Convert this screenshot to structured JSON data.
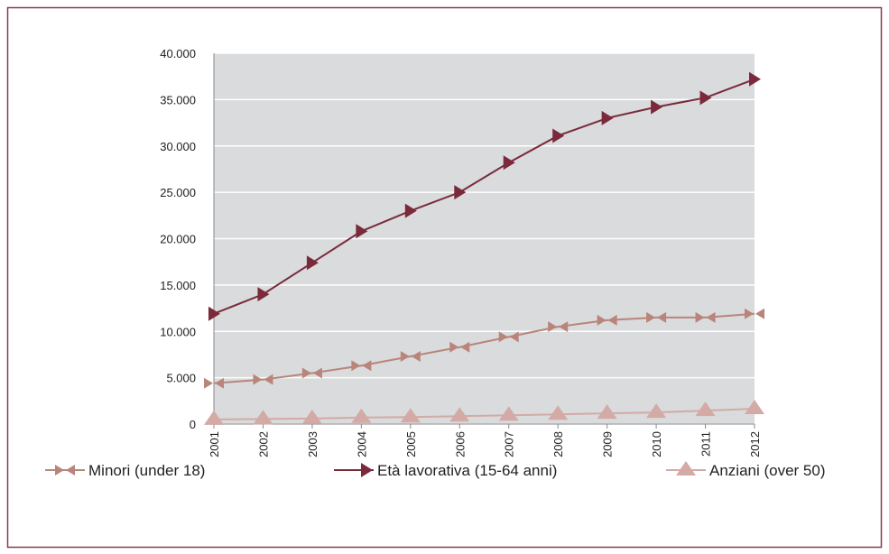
{
  "chart_data": {
    "type": "line",
    "categories": [
      "2001",
      "2002",
      "2003",
      "2004",
      "2005",
      "2006",
      "2007",
      "2008",
      "2009",
      "2010",
      "2011",
      "2012"
    ],
    "series": [
      {
        "name": "Minori (under 18)",
        "color": "#b9857b",
        "marker": "double-arrow",
        "values": [
          4400,
          4800,
          5500,
          6300,
          7300,
          8300,
          9400,
          10500,
          11200,
          11500,
          11500,
          11900
        ]
      },
      {
        "name": "Età lavorativa (15-64 anni)",
        "color": "#7a2a3b",
        "marker": "arrow",
        "values": [
          11900,
          14000,
          17400,
          20800,
          23000,
          25000,
          28200,
          31100,
          33000,
          34200,
          35200,
          37200
        ]
      },
      {
        "name": "Anziani (over 50)",
        "color": "#d3aaa6",
        "marker": "triangle",
        "values": [
          500,
          550,
          600,
          700,
          750,
          850,
          950,
          1050,
          1150,
          1250,
          1450,
          1650
        ]
      }
    ],
    "ylim": [
      0,
      40000
    ],
    "yticks": [
      0,
      {
        "value": 5000,
        "label": "5.000"
      },
      {
        "value": 10000,
        "label": "10.000"
      },
      {
        "value": 15000,
        "label": "15.000"
      },
      {
        "value": 20000,
        "label": "20.000"
      },
      {
        "value": 25000,
        "label": "25.000"
      },
      {
        "value": 30000,
        "label": "30.000"
      },
      {
        "value": 35000,
        "label": "35.000"
      },
      {
        "value": 40000,
        "label": "40.000"
      }
    ],
    "grid": true,
    "legend": "bottom"
  }
}
